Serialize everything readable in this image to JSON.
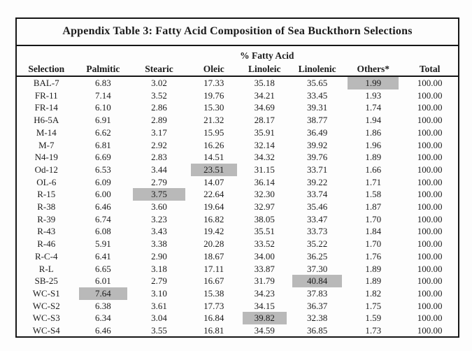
{
  "table": {
    "title": "Appendix Table 3: Fatty Acid Composition of Sea Buckthorn Selections",
    "group_header": "% Fatty Acid",
    "columns": [
      "Selection",
      "Palmitic",
      "Stearic",
      "Oleic",
      "Linoleic",
      "Linolenic",
      "Others*",
      "Total"
    ],
    "highlight_color": "#b9b9b9",
    "rows": [
      {
        "cells": [
          "BAL-7",
          "6.83",
          "3.02",
          "17.33",
          "35.18",
          "35.65",
          "1.99",
          "100.00"
        ],
        "highlight": 6
      },
      {
        "cells": [
          "FR-11",
          "7.14",
          "3.52",
          "19.76",
          "34.21",
          "33.45",
          "1.93",
          "100.00"
        ],
        "highlight": null
      },
      {
        "cells": [
          "FR-14",
          "6.10",
          "2.86",
          "15.30",
          "34.69",
          "39.31",
          "1.74",
          "100.00"
        ],
        "highlight": null
      },
      {
        "cells": [
          "H6-5A",
          "6.91",
          "2.89",
          "21.32",
          "28.17",
          "38.77",
          "1.94",
          "100.00"
        ],
        "highlight": null
      },
      {
        "cells": [
          "M-14",
          "6.62",
          "3.17",
          "15.95",
          "35.91",
          "36.49",
          "1.86",
          "100.00"
        ],
        "highlight": null
      },
      {
        "cells": [
          "M-7",
          "6.81",
          "2.92",
          "16.26",
          "32.14",
          "39.92",
          "1.96",
          "100.00"
        ],
        "highlight": null
      },
      {
        "cells": [
          "N4-19",
          "6.69",
          "2.83",
          "14.51",
          "34.32",
          "39.76",
          "1.89",
          "100.00"
        ],
        "highlight": null
      },
      {
        "cells": [
          "Od-12",
          "6.53",
          "3.44",
          "23.51",
          "31.15",
          "33.71",
          "1.66",
          "100.00"
        ],
        "highlight": 3
      },
      {
        "cells": [
          "OL-6",
          "6.09",
          "2.79",
          "14.07",
          "36.14",
          "39.22",
          "1.71",
          "100.00"
        ],
        "highlight": null
      },
      {
        "cells": [
          "R-15",
          "6.00",
          "3.75",
          "22.64",
          "32.30",
          "33.74",
          "1.58",
          "100.00"
        ],
        "highlight": 2
      },
      {
        "cells": [
          "R-38",
          "6.46",
          "3.60",
          "19.64",
          "32.97",
          "35.46",
          "1.87",
          "100.00"
        ],
        "highlight": null
      },
      {
        "cells": [
          "R-39",
          "6.74",
          "3.23",
          "16.82",
          "38.05",
          "33.47",
          "1.70",
          "100.00"
        ],
        "highlight": null
      },
      {
        "cells": [
          "R-43",
          "6.08",
          "3.43",
          "19.42",
          "35.51",
          "33.73",
          "1.84",
          "100.00"
        ],
        "highlight": null
      },
      {
        "cells": [
          "R-46",
          "5.91",
          "3.38",
          "20.28",
          "33.52",
          "35.22",
          "1.70",
          "100.00"
        ],
        "highlight": null
      },
      {
        "cells": [
          "R-C-4",
          "6.41",
          "2.90",
          "18.67",
          "34.00",
          "36.25",
          "1.76",
          "100.00"
        ],
        "highlight": null
      },
      {
        "cells": [
          "R-L",
          "6.65",
          "3.18",
          "17.11",
          "33.87",
          "37.30",
          "1.89",
          "100.00"
        ],
        "highlight": null
      },
      {
        "cells": [
          "SB-25",
          "6.01",
          "2.79",
          "16.67",
          "31.79",
          "40.84",
          "1.89",
          "100.00"
        ],
        "highlight": 5
      },
      {
        "cells": [
          "WC-S1",
          "7.64",
          "3.10",
          "15.38",
          "34.23",
          "37.83",
          "1.82",
          "100.00"
        ],
        "highlight": 1
      },
      {
        "cells": [
          "WC-S2",
          "6.38",
          "3.61",
          "17.73",
          "34.15",
          "36.37",
          "1.75",
          "100.00"
        ],
        "highlight": null
      },
      {
        "cells": [
          "WC-S3",
          "6.34",
          "3.04",
          "16.84",
          "39.82",
          "32.38",
          "1.59",
          "100.00"
        ],
        "highlight": 4
      },
      {
        "cells": [
          "WC-S4",
          "6.46",
          "3.55",
          "16.81",
          "34.59",
          "36.85",
          "1.73",
          "100.00"
        ],
        "highlight": null
      }
    ]
  }
}
